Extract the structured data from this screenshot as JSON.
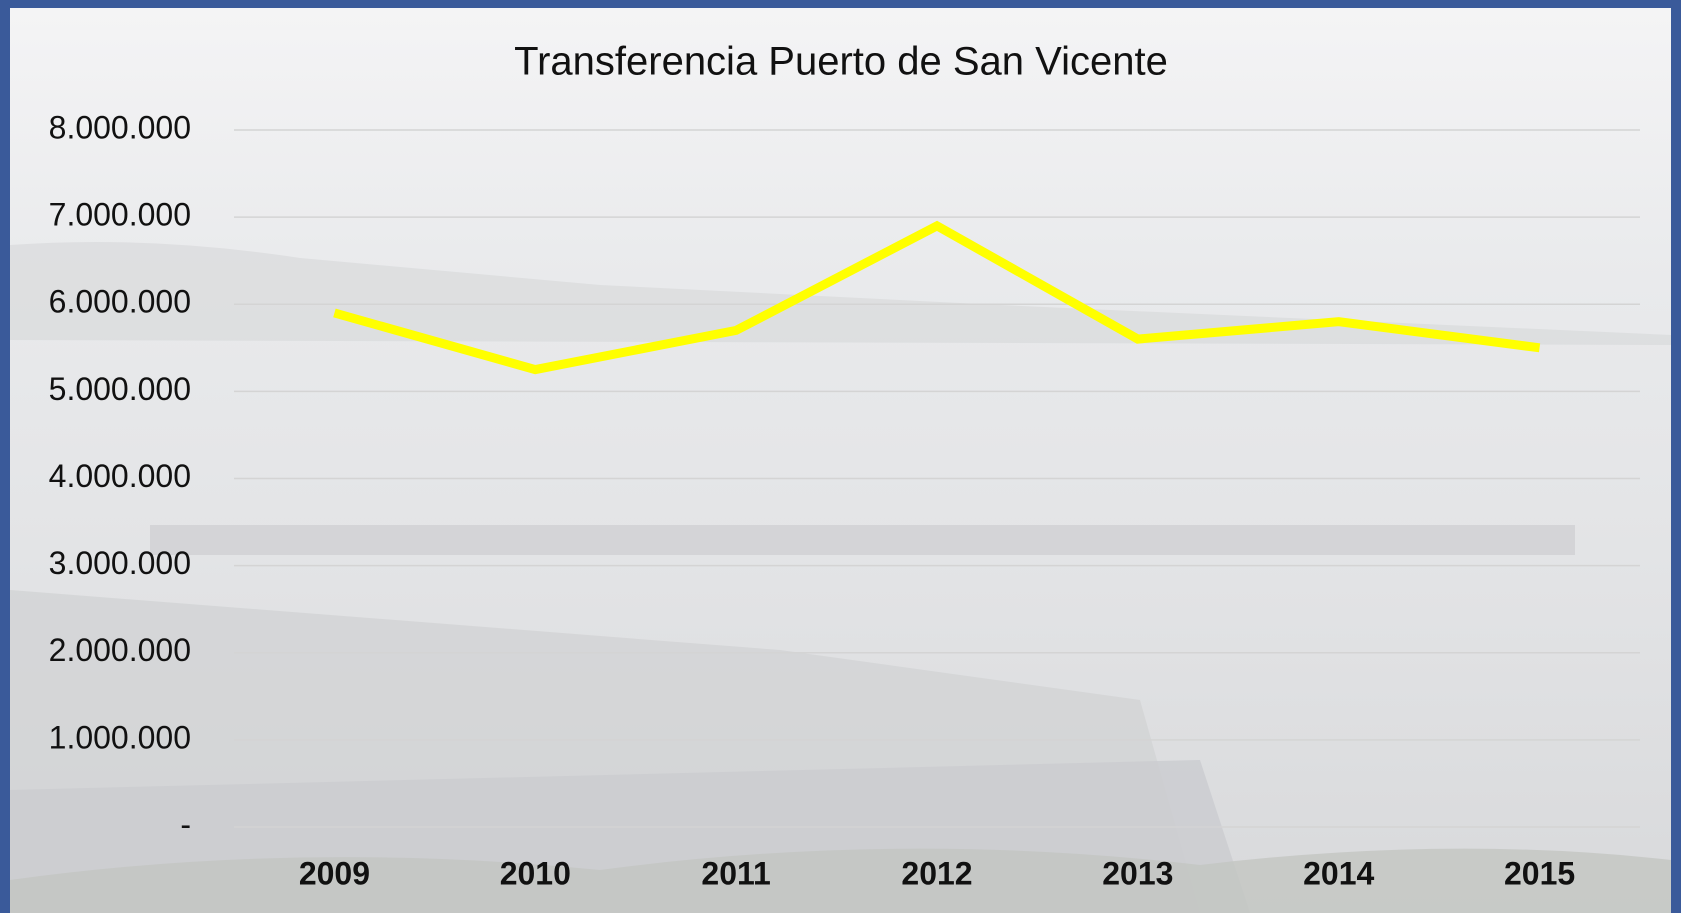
{
  "chart_data": {
    "type": "line",
    "title": "Transferencia Puerto de San Vicente",
    "categories": [
      "2009",
      "2010",
      "2011",
      "2012",
      "2013",
      "2014",
      "2015"
    ],
    "series": [
      {
        "color": "#ffff00",
        "values": [
          5900000,
          5250000,
          5700000,
          6900000,
          5600000,
          5800000,
          5500000
        ]
      }
    ],
    "ylim": [
      0,
      8000000
    ],
    "yticks": [
      {
        "value": 0,
        "label": "-"
      },
      {
        "value": 1000000,
        "label": "1.000.000"
      },
      {
        "value": 2000000,
        "label": "2.000.000"
      },
      {
        "value": 3000000,
        "label": "3.000.000"
      },
      {
        "value": 4000000,
        "label": "4.000.000"
      },
      {
        "value": 5000000,
        "label": "5.000.000"
      },
      {
        "value": 6000000,
        "label": "6.000.000"
      },
      {
        "value": 7000000,
        "label": "7.000.000"
      },
      {
        "value": 8000000,
        "label": "8.000.000"
      }
    ],
    "grid": true
  }
}
